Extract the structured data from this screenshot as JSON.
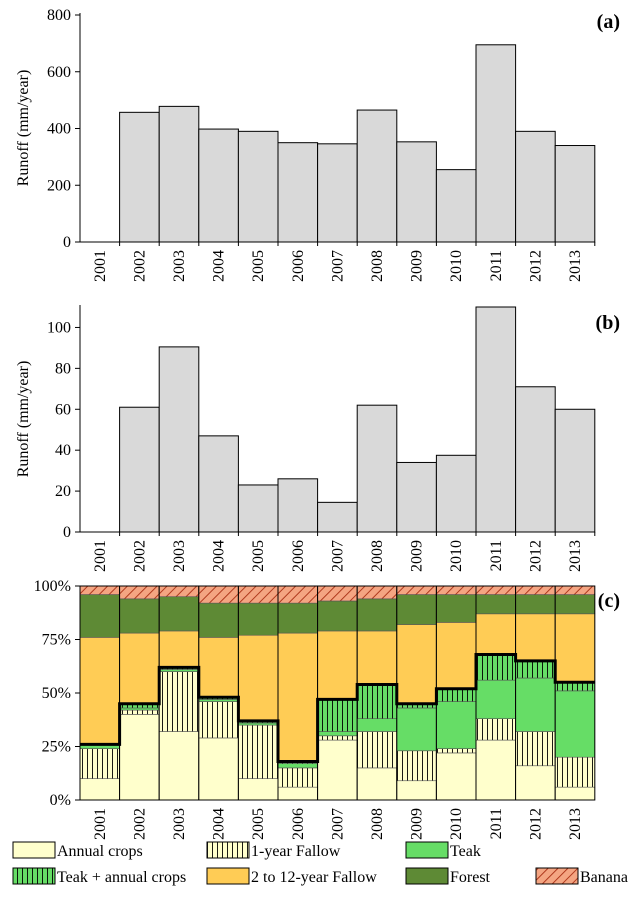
{
  "chart_data": [
    {
      "type": "bar",
      "panel_label": "(a)",
      "ylabel": "Runoff (mm/year)",
      "ylim": [
        0,
        800
      ],
      "yticks": [
        0,
        200,
        400,
        600,
        800
      ],
      "categories": [
        "2001",
        "2002",
        "2003",
        "2004",
        "2005",
        "2006",
        "2007",
        "2008",
        "2009",
        "2010",
        "2011",
        "2012",
        "2013"
      ],
      "values": [
        0,
        457,
        478,
        398,
        390,
        350,
        346,
        465,
        353,
        255,
        695,
        390,
        340
      ],
      "bar_color": "#d9d9d9",
      "grid": false
    },
    {
      "type": "bar",
      "panel_label": "(b)",
      "ylabel": "Runoff (mm/year)",
      "ylim": [
        0,
        110
      ],
      "yticks": [
        0,
        20,
        40,
        60,
        80,
        100
      ],
      "categories": [
        "2001",
        "2002",
        "2003",
        "2004",
        "2005",
        "2006",
        "2007",
        "2008",
        "2009",
        "2010",
        "2011",
        "2012",
        "2013"
      ],
      "values": [
        0,
        61,
        90.5,
        47,
        23,
        26,
        14.5,
        62,
        34,
        37.5,
        110,
        71,
        60
      ],
      "bar_color": "#d9d9d9",
      "grid": false
    },
    {
      "type": "stacked_bar",
      "panel_label": "(c)",
      "ylim": [
        0,
        100
      ],
      "ytick_labels": [
        "0%",
        "25%",
        "50%",
        "75%",
        "100%"
      ],
      "yticks": [
        0,
        25,
        50,
        75,
        100
      ],
      "categories": [
        "2001",
        "2002",
        "2003",
        "2004",
        "2005",
        "2006",
        "2007",
        "2008",
        "2009",
        "2010",
        "2011",
        "2012",
        "2013"
      ],
      "series": [
        {
          "name": "Annual crops",
          "color": "#ffffcc",
          "pattern": "solid",
          "values": [
            10,
            40,
            32,
            29,
            10,
            6,
            28,
            15,
            9,
            22,
            28,
            16,
            6
          ]
        },
        {
          "name": "1-year Fallow",
          "color": "#ffffcc",
          "pattern": "vlines",
          "values": [
            14,
            2,
            28,
            17,
            25,
            9,
            2,
            17,
            14,
            2,
            10,
            16,
            14
          ]
        },
        {
          "name": "Teak",
          "color": "#66dd66",
          "pattern": "solid",
          "values": [
            2,
            1,
            1,
            1,
            1,
            2,
            2,
            6,
            20,
            22,
            18,
            25,
            31
          ]
        },
        {
          "name": "Teak + annual crops",
          "color": "#66dd66",
          "pattern": "vlines",
          "values": [
            0,
            2,
            1,
            1,
            1,
            1,
            15,
            16,
            2,
            6,
            12,
            8,
            4
          ]
        },
        {
          "name": "2 to 12-year Fallow",
          "color": "#ffcc55",
          "pattern": "solid",
          "values": [
            50,
            33,
            17,
            28,
            40,
            60,
            32,
            25,
            37,
            31,
            19,
            22,
            32
          ]
        },
        {
          "name": "Forest",
          "color": "#5e8a35",
          "pattern": "solid",
          "values": [
            20,
            16,
            16,
            16,
            15,
            14,
            14,
            15,
            14,
            13,
            9,
            9,
            9
          ]
        },
        {
          "name": "Banana",
          "color": "#f4a582",
          "pattern": "diag",
          "values": [
            4,
            6,
            5,
            8,
            8,
            8,
            7,
            6,
            4,
            4,
            4,
            4,
            4
          ]
        }
      ],
      "boundary_line": {
        "description_visible": false,
        "values": [
          26,
          45,
          62,
          48,
          37,
          18,
          47,
          54,
          45,
          52,
          68,
          65,
          55
        ]
      }
    }
  ],
  "legend": {
    "items": [
      {
        "label": "Annual crops",
        "color": "#ffffcc",
        "pattern": "solid"
      },
      {
        "label": "1-year Fallow",
        "color": "#ffffcc",
        "pattern": "vlines"
      },
      {
        "label": "Teak",
        "color": "#66dd66",
        "pattern": "solid"
      },
      {
        "label": "Teak + annual crops",
        "color": "#66dd66",
        "pattern": "vlines"
      },
      {
        "label": "2 to 12-year Fallow",
        "color": "#ffcc55",
        "pattern": "solid"
      },
      {
        "label": "Forest",
        "color": "#5e8a35",
        "pattern": "solid"
      },
      {
        "label": "Banana",
        "color": "#f4a582",
        "pattern": "diag"
      }
    ]
  }
}
